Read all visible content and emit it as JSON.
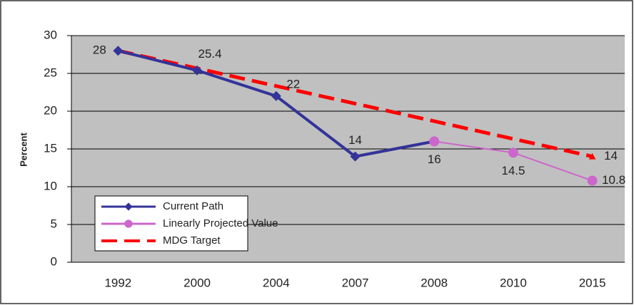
{
  "chart_data": {
    "type": "line",
    "y_label": "Percent",
    "categories": [
      "1992",
      "2000",
      "2004",
      "2007",
      "2008",
      "2010",
      "2015"
    ],
    "series": [
      {
        "name": "Current Path",
        "color": "#333399",
        "marker": "diamond",
        "dashed": false,
        "values": [
          28,
          25.4,
          22,
          14,
          16,
          null,
          null
        ],
        "labeled": [
          0,
          1,
          2,
          3
        ]
      },
      {
        "name": "Linearly Projected Value",
        "color": "#cc66cc",
        "marker": "circle",
        "dashed": false,
        "values": [
          null,
          null,
          null,
          null,
          16,
          14.5,
          10.8
        ],
        "labeled": [
          4,
          5,
          6
        ]
      },
      {
        "name": "MDG Target",
        "color": "#ff0000",
        "marker": "triangle",
        "dashed": true,
        "values": [
          28,
          25.67,
          23.33,
          21,
          18.67,
          16.33,
          14
        ],
        "labeled": [
          6
        ]
      }
    ],
    "ylim": [
      0,
      30
    ],
    "yticks": [
      0,
      5,
      10,
      15,
      20,
      25,
      30
    ],
    "grid": true
  }
}
